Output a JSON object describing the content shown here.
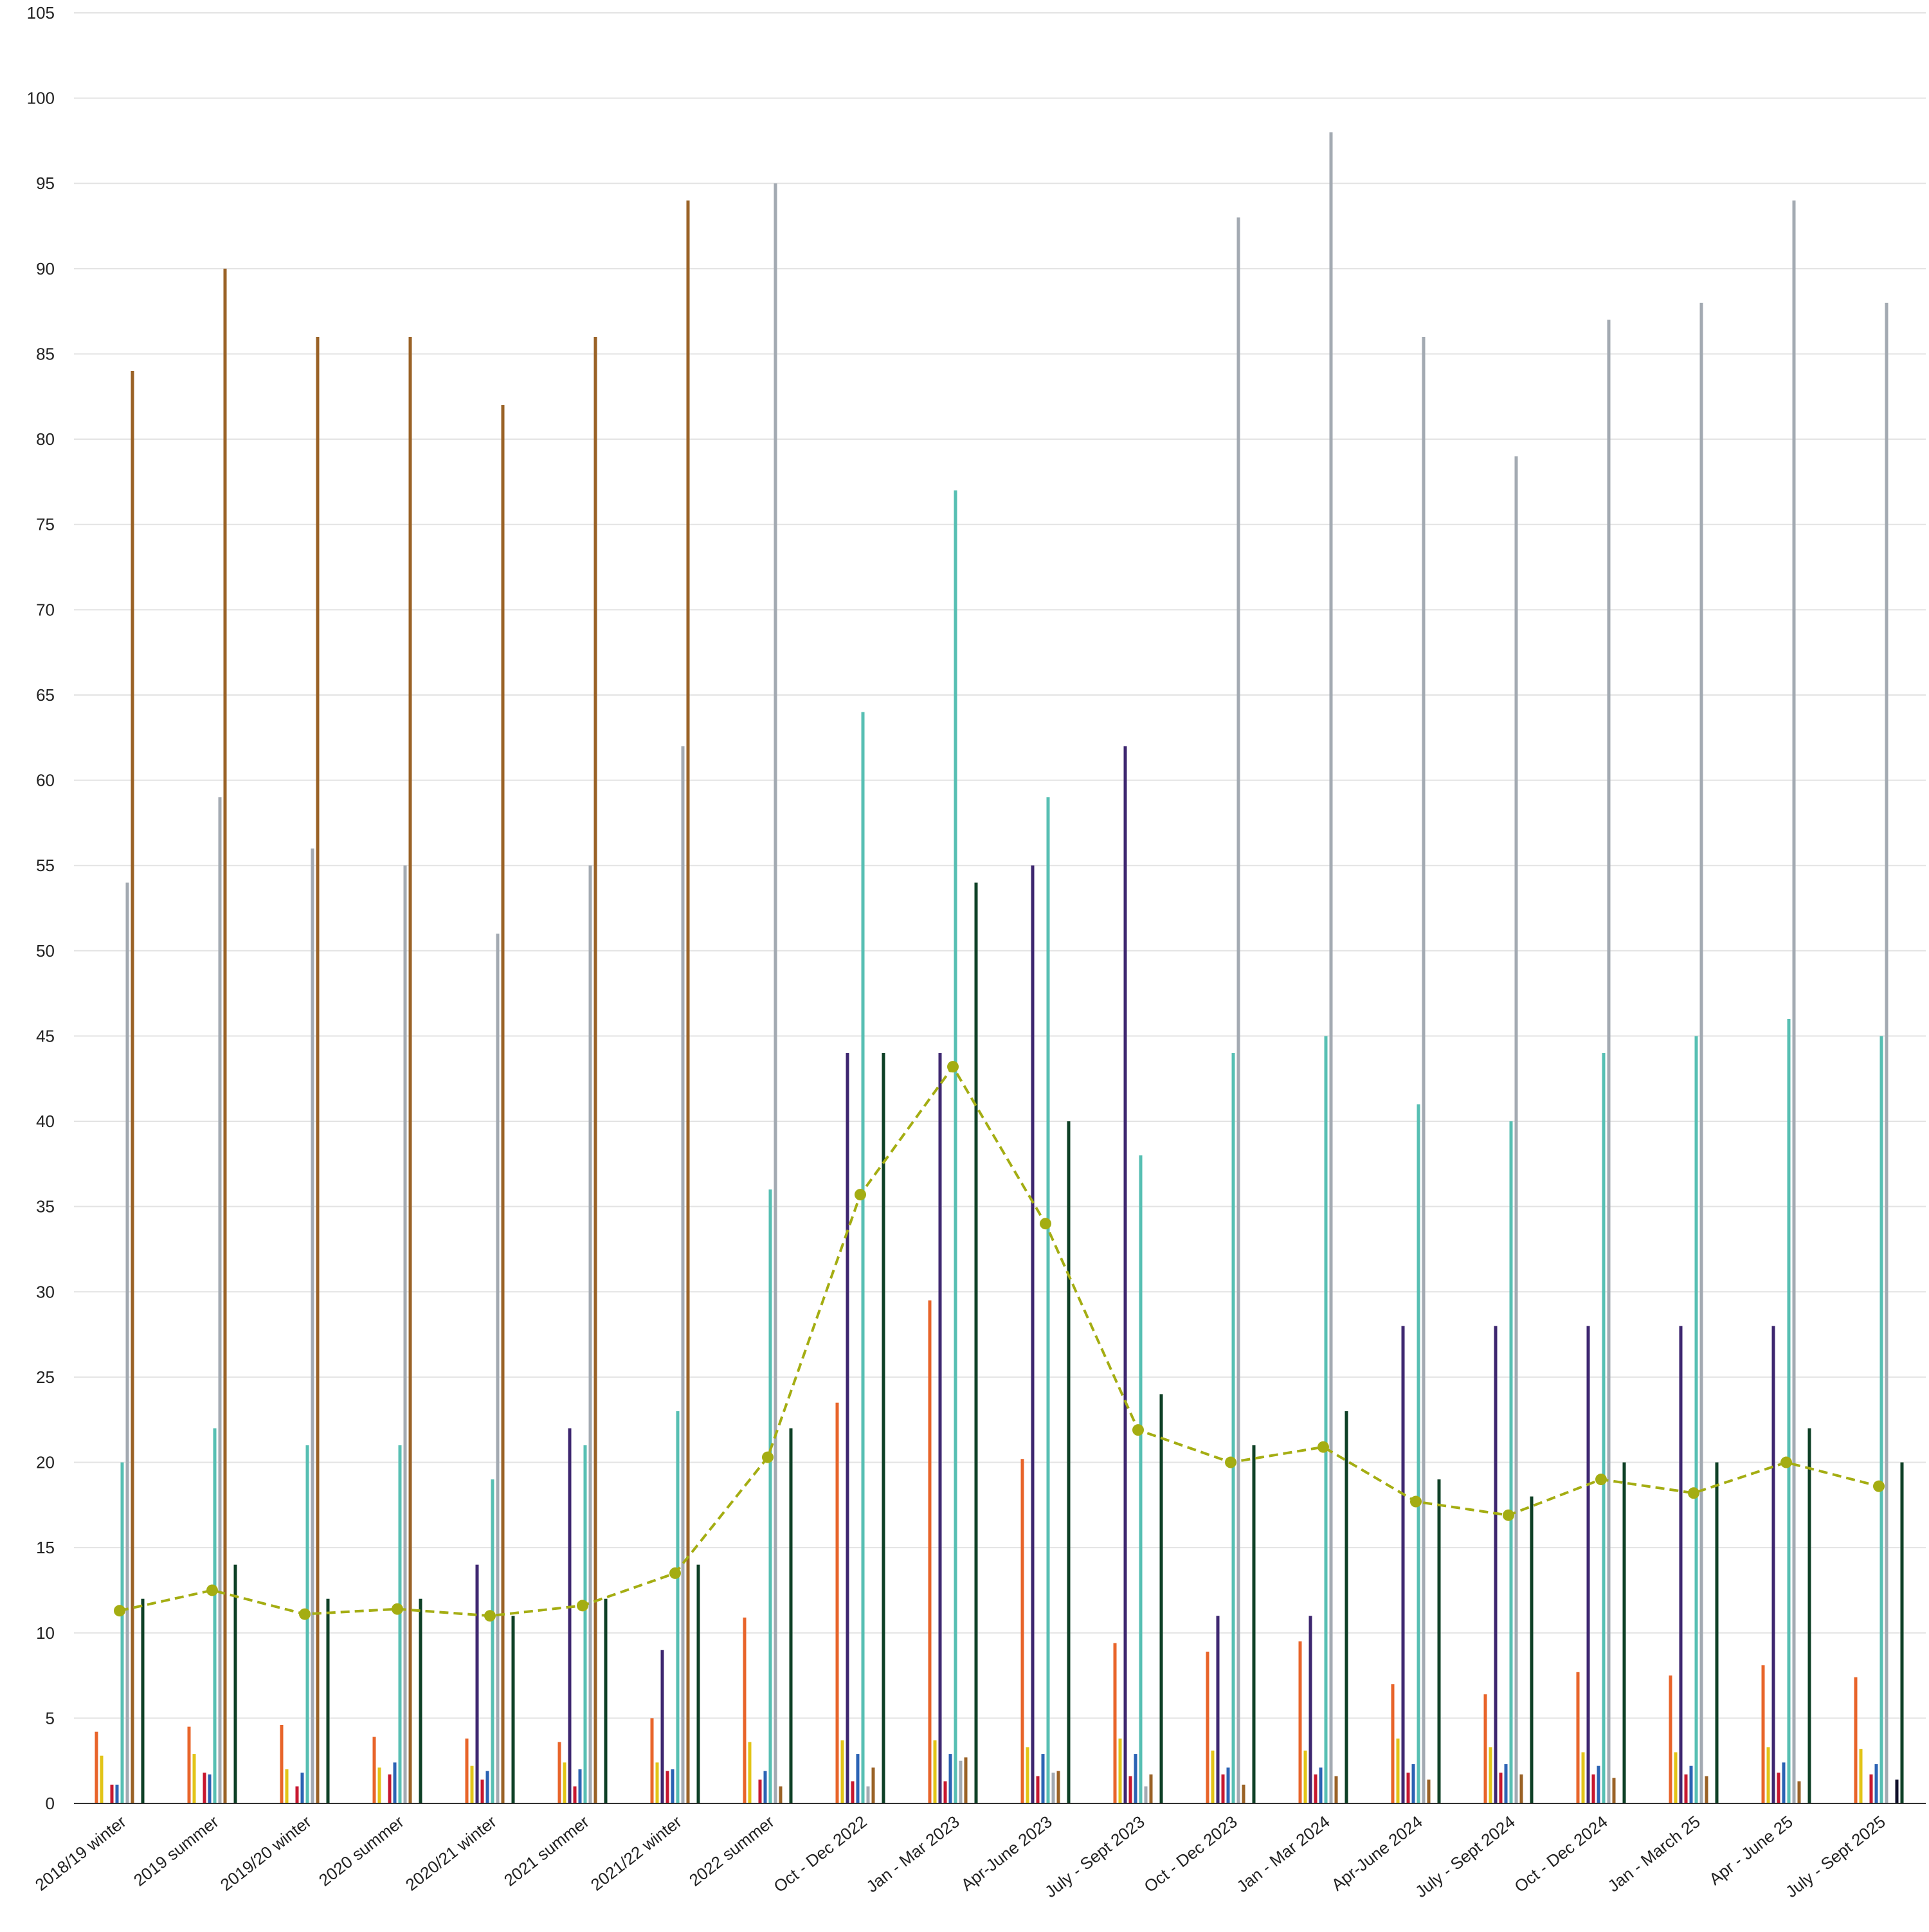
{
  "chart_data": {
    "type": "bar",
    "title": "",
    "xlabel": "",
    "ylabel": "",
    "ylim": [
      0,
      105
    ],
    "y_ticks": [
      0,
      5,
      10,
      15,
      20,
      25,
      30,
      35,
      40,
      45,
      50,
      55,
      60,
      65,
      70,
      75,
      80,
      85,
      90,
      95,
      100,
      105
    ],
    "grid": "horizontal",
    "legend": "none",
    "categories": [
      "2018/19 winter",
      "2019 summer",
      "2019/20 winter",
      "2020 summer",
      "2020/21 winter",
      "2021 summer",
      "2021/22 winter",
      "2022 summer",
      "Oct - Dec 2022",
      "Jan - Mar 2023",
      "Apr-June 2023",
      "July - Sept 2023",
      "Oct - Dec 2023",
      "Jan - Mar 2024",
      "Apr-June 2024",
      "July - Sept 2024",
      "Oct - Dec 2024",
      "Jan - March 25",
      "Apr - June 25",
      "July - Sept 2025"
    ],
    "series": [
      {
        "color": "#e8642a",
        "values": [
          4.2,
          4.5,
          4.6,
          3.9,
          3.8,
          3.6,
          5.0,
          10.9,
          23.5,
          29.5,
          20.2,
          9.4,
          8.9,
          9.5,
          7.0,
          6.4,
          7.7,
          7.5,
          8.1,
          7.4
        ]
      },
      {
        "color": "#e2c417",
        "values": [
          2.8,
          2.9,
          2.0,
          2.1,
          2.2,
          2.4,
          2.4,
          3.6,
          3.7,
          3.7,
          3.3,
          3.8,
          3.1,
          3.1,
          3.8,
          3.3,
          3.0,
          3.0,
          3.3,
          3.2
        ]
      },
      {
        "color": "#3e2770",
        "values": [
          null,
          null,
          null,
          null,
          14,
          22,
          9,
          null,
          44,
          44,
          55,
          62,
          11,
          11,
          28,
          28,
          28,
          28,
          28,
          null
        ]
      },
      {
        "color": "#c7172f",
        "values": [
          1.1,
          1.8,
          1.0,
          1.7,
          1.4,
          1.0,
          1.9,
          1.4,
          1.3,
          1.3,
          1.6,
          1.6,
          1.7,
          1.7,
          1.8,
          1.8,
          1.7,
          1.7,
          1.8,
          1.7
        ]
      },
      {
        "color": "#2b63b4",
        "values": [
          1.1,
          1.7,
          1.8,
          2.4,
          1.9,
          2.0,
          2.0,
          1.9,
          2.9,
          2.9,
          2.9,
          2.9,
          2.1,
          2.1,
          2.3,
          2.3,
          2.2,
          2.2,
          2.4,
          2.3
        ]
      },
      {
        "color": "#57bfb3",
        "values": [
          20,
          22,
          21,
          21,
          19,
          21,
          23,
          36,
          64,
          77,
          59,
          38,
          44,
          45,
          41,
          40,
          44,
          45,
          46,
          45
        ]
      },
      {
        "color": "#a3aab2",
        "values": [
          54,
          59,
          56,
          55,
          51,
          55,
          62,
          95,
          1.0,
          2.5,
          1.8,
          1.0,
          93,
          98,
          86,
          79,
          87,
          88,
          94,
          88
        ]
      },
      {
        "color": "#9a6226",
        "values": [
          84,
          90,
          86,
          86,
          82,
          86,
          94,
          1.0,
          2.1,
          2.7,
          1.9,
          1.7,
          1.1,
          1.6,
          1.4,
          1.7,
          1.5,
          1.6,
          1.3,
          null
        ]
      },
      {
        "color": "#0f0f2a",
        "values": [
          null,
          null,
          null,
          null,
          null,
          null,
          null,
          null,
          null,
          null,
          null,
          null,
          null,
          null,
          null,
          null,
          null,
          null,
          null,
          1.4
        ]
      },
      {
        "color": "#0e4026",
        "values": [
          12,
          14,
          12,
          12,
          11,
          12,
          14,
          22,
          44,
          54,
          40,
          24,
          21,
          23,
          19,
          18,
          20,
          20,
          22,
          20
        ]
      }
    ],
    "line_series": {
      "color": "#a4ad12",
      "style": "dashed",
      "values": [
        11.3,
        12.5,
        11.1,
        11.4,
        11.0,
        11.6,
        13.5,
        20.3,
        35.7,
        43.2,
        34.0,
        21.9,
        20.0,
        20.9,
        17.7,
        16.9,
        19.0,
        18.2,
        20.0,
        18.6
      ]
    }
  }
}
